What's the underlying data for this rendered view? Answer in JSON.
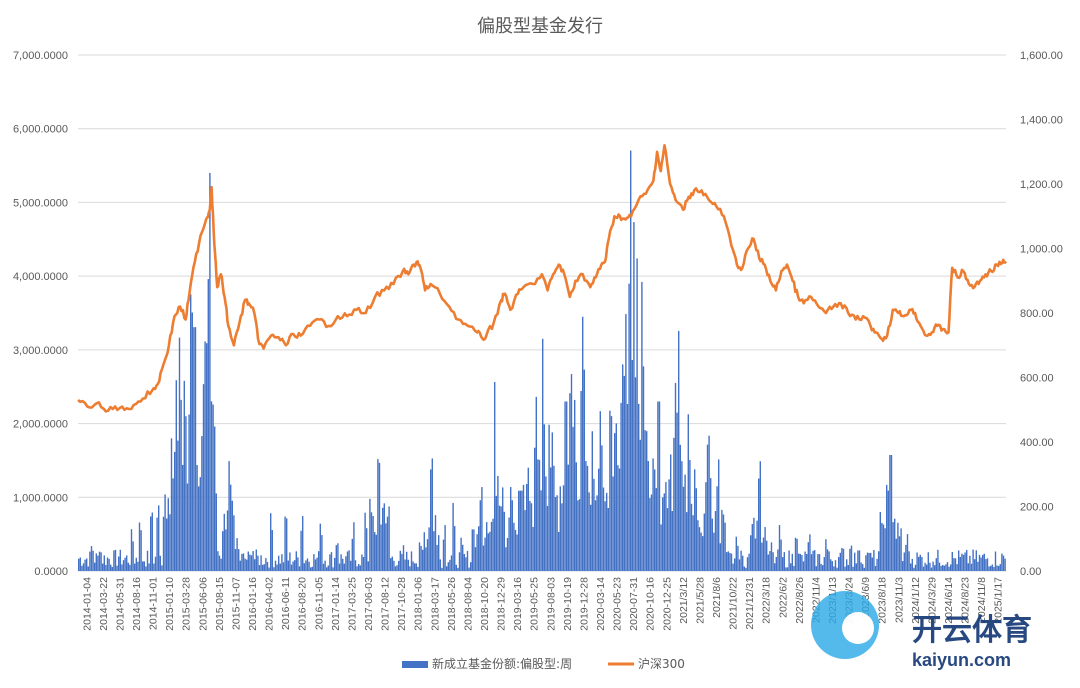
{
  "colors": {
    "bars": "#4472C4",
    "line": "#ED7D31",
    "grid": "#D9D9D9",
    "text": "#595959"
  },
  "chart_data": {
    "type": "bar+line",
    "title": "偏股型基金发行",
    "y_left": {
      "ylim": [
        0,
        7000
      ],
      "ticks": [
        "0.0000",
        "1,000.0000",
        "2,000.0000",
        "3,000.0000",
        "4,000.0000",
        "5,000.0000",
        "6,000.0000",
        "7,000.0000"
      ]
    },
    "y_right": {
      "ylim": [
        0,
        1600
      ],
      "ticks": [
        "0.00",
        "200.00",
        "400.00",
        "600.00",
        "800.00",
        "1,000.00",
        "1,200.00",
        "1,400.00",
        "1,600.00"
      ]
    },
    "x_ticks": [
      "2014-01-04",
      "2014-03-22",
      "2014-05-31",
      "2014-08-16",
      "2014-11-01",
      "2015-01-10",
      "2015-03-28",
      "2015-06-06",
      "2015-08-15",
      "2015-11-07",
      "2016-01-16",
      "2016-04-02",
      "2016-06-11",
      "2016-08-20",
      "2016-11-05",
      "2017-01-14",
      "2017-03-25",
      "2017-06-03",
      "2017-08-12",
      "2017-10-28",
      "2018-01-06",
      "2018-03-17",
      "2018-05-26",
      "2018-08-04",
      "2018-10-20",
      "2018-12-29",
      "2019-03-16",
      "2019-05-25",
      "2019-08-03",
      "2019-10-19",
      "2019-12-28",
      "2020-03-14",
      "2020-05-23",
      "2020-07-31",
      "2020-10-16",
      "2020-12-25",
      "2021/3/12",
      "2021/5/28",
      "2021/8/6",
      "2021/10/22",
      "2021/12/31",
      "2022/3/18",
      "2022/6/2",
      "2022/8/26",
      "2022/11/4",
      "2023/1/13",
      "2023/3/24",
      "2023/6/9",
      "2023/8/18",
      "2023/11/3",
      "2024/1/12",
      "2024/3/29",
      "2024/6/14",
      "2024/8/23",
      "2024/11/8",
      "2025/1/17"
    ],
    "series": [
      {
        "name": "新成立基金份额:偏股型:周",
        "type": "bar",
        "axis": "left",
        "spikes": [
          [
            0.1,
            150
          ],
          [
            0.8,
            380
          ],
          [
            1.3,
            320
          ],
          [
            2.5,
            300
          ],
          [
            3.2,
            600
          ],
          [
            3.7,
            750
          ],
          [
            4.4,
            950
          ],
          [
            4.8,
            1000
          ],
          [
            5.2,
            1100
          ],
          [
            5.6,
            1800
          ],
          [
            5.9,
            2700
          ],
          [
            6.1,
            3400
          ],
          [
            6.4,
            2900
          ],
          [
            6.8,
            4500
          ],
          [
            7.0,
            4100
          ],
          [
            7.3,
            1500
          ],
          [
            7.6,
            3500
          ],
          [
            7.9,
            5800
          ],
          [
            8.1,
            450
          ],
          [
            9.1,
            1650
          ],
          [
            9.6,
            380
          ],
          [
            10.5,
            300
          ],
          [
            11.6,
            830
          ],
          [
            12.5,
            900
          ],
          [
            13.5,
            800
          ],
          [
            14.6,
            700
          ],
          [
            15.6,
            450
          ],
          [
            16.6,
            680
          ],
          [
            17.3,
            850
          ],
          [
            17.6,
            1100
          ],
          [
            18.1,
            1850
          ],
          [
            18.4,
            1100
          ],
          [
            18.7,
            1000
          ],
          [
            19.6,
            350
          ],
          [
            20.6,
            450
          ],
          [
            21.3,
            1800
          ],
          [
            22.1,
            650
          ],
          [
            22.6,
            950
          ],
          [
            23.1,
            500
          ],
          [
            23.8,
            700
          ],
          [
            24.3,
            1300
          ],
          [
            24.6,
            650
          ],
          [
            25.1,
            2600
          ],
          [
            25.6,
            1200
          ],
          [
            26.1,
            1300
          ],
          [
            26.6,
            1350
          ],
          [
            26.8,
            1400
          ],
          [
            27.1,
            1600
          ],
          [
            27.6,
            2500
          ],
          [
            27.8,
            1550
          ],
          [
            28.0,
            3150
          ],
          [
            28.4,
            2100
          ],
          [
            28.6,
            2050
          ],
          [
            29.4,
            2850
          ],
          [
            29.7,
            3150
          ],
          [
            29.9,
            2650
          ],
          [
            30.4,
            3650
          ],
          [
            30.5,
            2850
          ],
          [
            31.0,
            1950
          ],
          [
            31.5,
            2400
          ],
          [
            32.1,
            2650
          ],
          [
            32.4,
            2400
          ],
          [
            32.8,
            3150
          ],
          [
            33.0,
            3800
          ],
          [
            33.3,
            5950
          ],
          [
            33.5,
            4800
          ],
          [
            33.7,
            4300
          ],
          [
            34.0,
            4150
          ],
          [
            34.3,
            2100
          ],
          [
            34.7,
            1800
          ],
          [
            35.0,
            2850
          ],
          [
            35.4,
            1400
          ],
          [
            35.7,
            1750
          ],
          [
            36.0,
            2700
          ],
          [
            36.2,
            3350
          ],
          [
            36.8,
            2250
          ],
          [
            37.2,
            1550
          ],
          [
            38.0,
            2200
          ],
          [
            38.6,
            1650
          ],
          [
            38.9,
            800
          ],
          [
            39.7,
            500
          ],
          [
            40.6,
            600
          ],
          [
            41.1,
            1700
          ],
          [
            41.4,
            650
          ],
          [
            41.8,
            400
          ],
          [
            42.3,
            650
          ],
          [
            43.3,
            550
          ],
          [
            44.1,
            550
          ],
          [
            45.1,
            450
          ],
          [
            46.1,
            380
          ],
          [
            46.6,
            400
          ],
          [
            47.1,
            300
          ],
          [
            47.6,
            250
          ],
          [
            48.4,
            900
          ],
          [
            48.8,
            1400
          ],
          [
            49.0,
            1950
          ],
          [
            49.2,
            850
          ],
          [
            49.6,
            650
          ],
          [
            50.0,
            530
          ]
        ],
        "baseline": 140
      },
      {
        "name": "沪深300",
        "type": "line",
        "axis": "right",
        "points": [
          [
            0,
            530
          ],
          [
            0.5,
            510
          ],
          [
            1.0,
            520
          ],
          [
            1.5,
            495
          ],
          [
            2.0,
            510
          ],
          [
            2.5,
            500
          ],
          [
            3.0,
            515
          ],
          [
            3.5,
            535
          ],
          [
            4.0,
            560
          ],
          [
            4.3,
            580
          ],
          [
            4.6,
            640
          ],
          [
            4.9,
            700
          ],
          [
            5.2,
            790
          ],
          [
            5.5,
            820
          ],
          [
            5.8,
            780
          ],
          [
            6.0,
            860
          ],
          [
            6.3,
            960
          ],
          [
            6.6,
            1040
          ],
          [
            6.9,
            1090
          ],
          [
            7.1,
            1120
          ],
          [
            7.2,
            1190
          ],
          [
            7.35,
            1010
          ],
          [
            7.5,
            880
          ],
          [
            7.7,
            920
          ],
          [
            7.9,
            850
          ],
          [
            8.1,
            760
          ],
          [
            8.4,
            700
          ],
          [
            8.7,
            770
          ],
          [
            9.0,
            840
          ],
          [
            9.2,
            830
          ],
          [
            9.5,
            800
          ],
          [
            9.7,
            720
          ],
          [
            10.0,
            690
          ],
          [
            10.4,
            730
          ],
          [
            10.8,
            725
          ],
          [
            11.2,
            700
          ],
          [
            11.6,
            735
          ],
          [
            12.0,
            730
          ],
          [
            12.5,
            760
          ],
          [
            13.0,
            780
          ],
          [
            13.5,
            760
          ],
          [
            14.0,
            790
          ],
          [
            14.5,
            790
          ],
          [
            15.0,
            810
          ],
          [
            15.5,
            800
          ],
          [
            16.0,
            850
          ],
          [
            16.5,
            870
          ],
          [
            17.0,
            890
          ],
          [
            17.5,
            930
          ],
          [
            17.8,
            920
          ],
          [
            18.1,
            950
          ],
          [
            18.3,
            960
          ],
          [
            18.5,
            930
          ],
          [
            18.7,
            870
          ],
          [
            19.0,
            890
          ],
          [
            19.5,
            860
          ],
          [
            20.0,
            820
          ],
          [
            20.5,
            780
          ],
          [
            21.0,
            760
          ],
          [
            21.5,
            740
          ],
          [
            21.8,
            720
          ],
          [
            22.0,
            730
          ],
          [
            22.4,
            770
          ],
          [
            22.8,
            840
          ],
          [
            23.0,
            860
          ],
          [
            23.3,
            810
          ],
          [
            23.7,
            860
          ],
          [
            24.0,
            880
          ],
          [
            24.5,
            890
          ],
          [
            25.0,
            920
          ],
          [
            25.3,
            870
          ],
          [
            25.6,
            920
          ],
          [
            25.9,
            950
          ],
          [
            26.2,
            920
          ],
          [
            26.5,
            850
          ],
          [
            26.8,
            900
          ],
          [
            27.2,
            920
          ],
          [
            27.6,
            880
          ],
          [
            27.9,
            910
          ],
          [
            28.2,
            950
          ],
          [
            28.4,
            960
          ],
          [
            28.6,
            1030
          ],
          [
            28.9,
            1100
          ],
          [
            29.2,
            1100
          ],
          [
            29.5,
            1090
          ],
          [
            29.8,
            1100
          ],
          [
            30.2,
            1150
          ],
          [
            30.6,
            1170
          ],
          [
            31.0,
            1210
          ],
          [
            31.2,
            1300
          ],
          [
            31.4,
            1240
          ],
          [
            31.6,
            1320
          ],
          [
            31.9,
            1200
          ],
          [
            32.2,
            1150
          ],
          [
            32.6,
            1120
          ],
          [
            32.9,
            1160
          ],
          [
            33.2,
            1180
          ],
          [
            33.6,
            1180
          ],
          [
            34.0,
            1150
          ],
          [
            34.4,
            1130
          ],
          [
            34.8,
            1100
          ],
          [
            35.2,
            1010
          ],
          [
            35.5,
            950
          ],
          [
            35.8,
            940
          ],
          [
            36.1,
            1000
          ],
          [
            36.4,
            1030
          ],
          [
            36.7,
            970
          ],
          [
            37.0,
            950
          ],
          [
            37.3,
            900
          ],
          [
            37.6,
            870
          ],
          [
            37.9,
            930
          ],
          [
            38.2,
            950
          ],
          [
            38.5,
            900
          ],
          [
            38.8,
            850
          ],
          [
            39.1,
            830
          ],
          [
            39.5,
            850
          ],
          [
            39.9,
            820
          ],
          [
            40.3,
            800
          ],
          [
            40.7,
            820
          ],
          [
            41.1,
            830
          ],
          [
            41.5,
            800
          ],
          [
            41.9,
            780
          ],
          [
            42.3,
            790
          ],
          [
            42.7,
            760
          ],
          [
            43.0,
            740
          ],
          [
            43.3,
            720
          ],
          [
            43.6,
            730
          ],
          [
            43.9,
            810
          ],
          [
            44.2,
            800
          ],
          [
            44.5,
            790
          ],
          [
            44.8,
            810
          ],
          [
            45.1,
            800
          ],
          [
            45.4,
            760
          ],
          [
            45.7,
            730
          ],
          [
            46.0,
            740
          ],
          [
            46.3,
            760
          ],
          [
            46.6,
            750
          ],
          [
            46.9,
            740
          ],
          [
            47.1,
            940
          ],
          [
            47.4,
            910
          ],
          [
            47.7,
            930
          ],
          [
            48.0,
            890
          ],
          [
            48.3,
            880
          ],
          [
            48.6,
            900
          ],
          [
            48.9,
            920
          ],
          [
            49.2,
            930
          ],
          [
            49.5,
            950
          ],
          [
            49.8,
            955
          ],
          [
            50.0,
            960
          ]
        ]
      }
    ],
    "legend": {
      "placement": "bottom"
    }
  },
  "watermark": {
    "text": "开云体育",
    "subtext": "kaiyun.com",
    "icon": "soccer-ball-logo"
  }
}
